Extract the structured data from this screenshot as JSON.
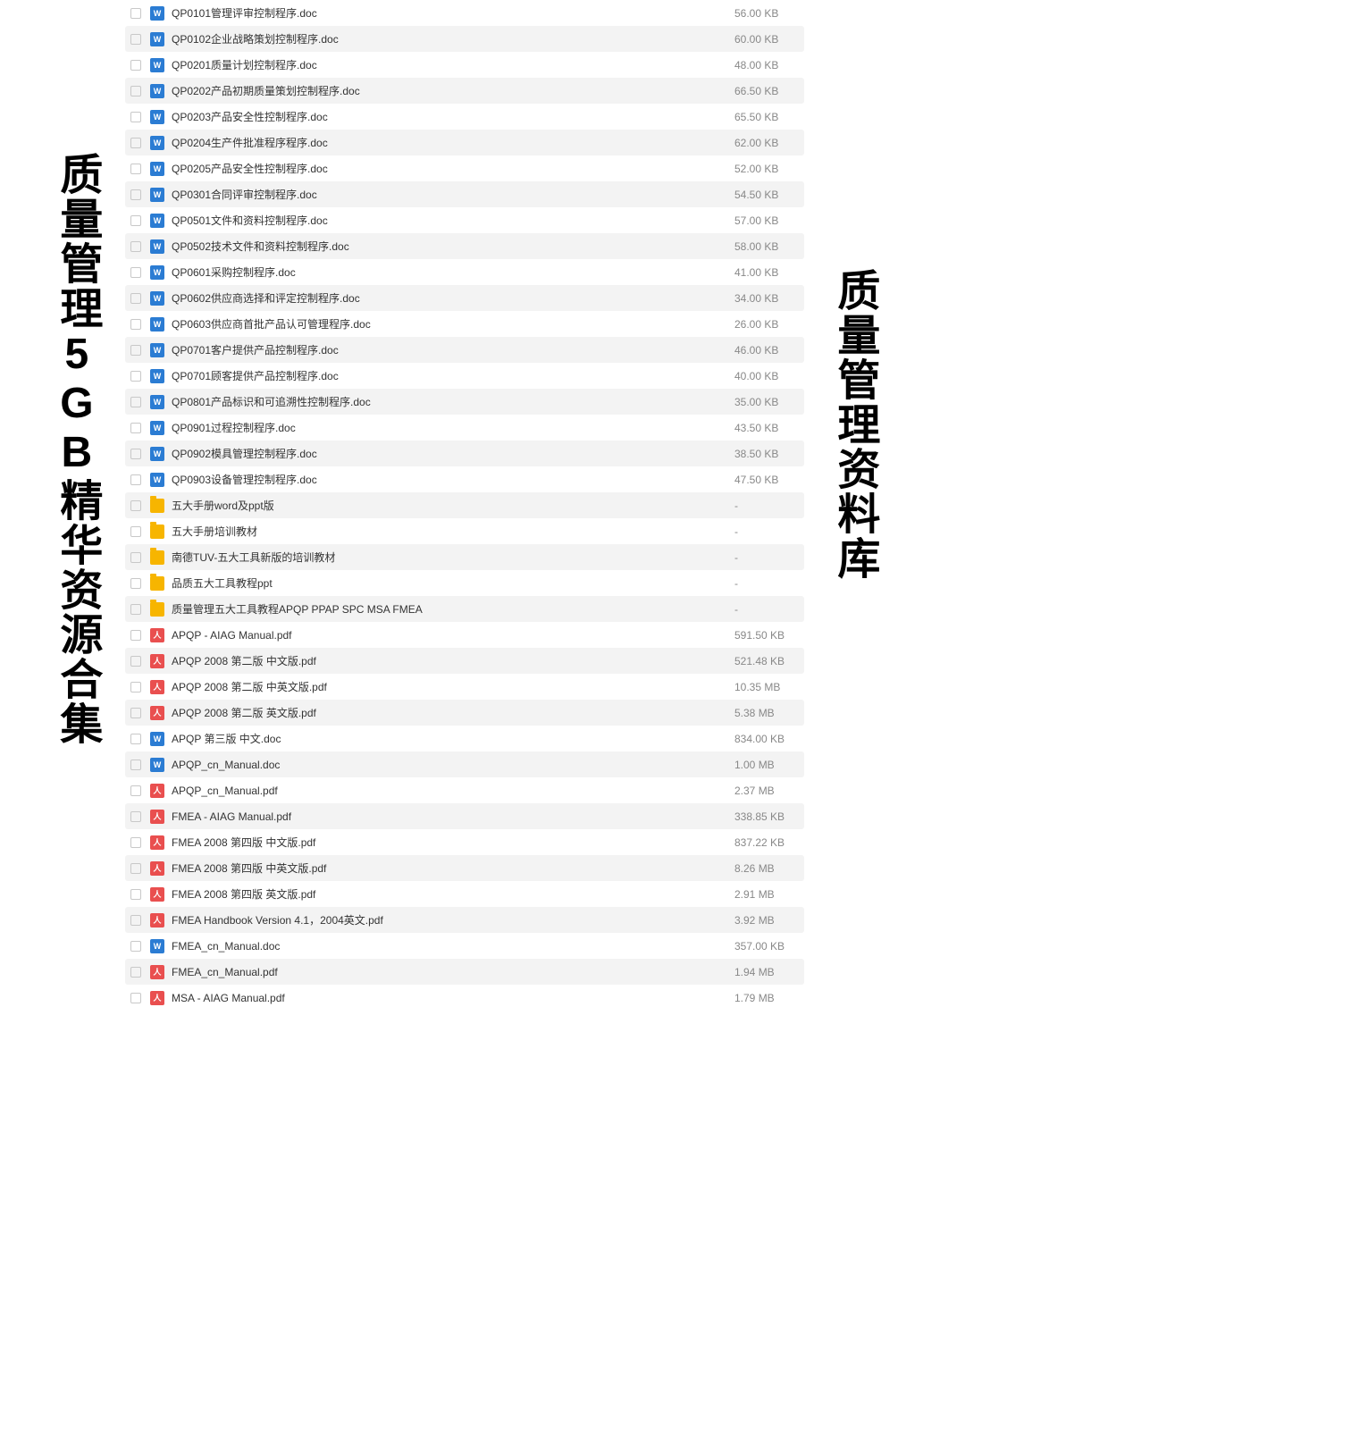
{
  "sideLabels": {
    "left": "质量管理5GB精华资源合集",
    "right": "质量管理资料库"
  },
  "iconGlyphs": {
    "doc": "W",
    "pdf": "人",
    "folder": ""
  },
  "colors": {
    "docIcon": "#2b7cd3",
    "pdfIcon": "#e94f4f",
    "folderIcon": "#f7b500",
    "rowAltBg": "#f3f3f3",
    "textPrimary": "#333333",
    "textSecondary": "#888888",
    "checkboxBorder": "#c8c8c8",
    "background": "#ffffff"
  },
  "files": [
    {
      "type": "doc",
      "name": "QP0101管理评审控制程序.doc",
      "size": "56.00 KB"
    },
    {
      "type": "doc",
      "name": "QP0102企业战略策划控制程序.doc",
      "size": "60.00 KB"
    },
    {
      "type": "doc",
      "name": "QP0201质量计划控制程序.doc",
      "size": "48.00 KB"
    },
    {
      "type": "doc",
      "name": "QP0202产品初期质量策划控制程序.doc",
      "size": "66.50 KB"
    },
    {
      "type": "doc",
      "name": "QP0203产品安全性控制程序.doc",
      "size": "65.50 KB"
    },
    {
      "type": "doc",
      "name": "QP0204生产件批准程序程序.doc",
      "size": "62.00 KB"
    },
    {
      "type": "doc",
      "name": "QP0205产品安全性控制程序.doc",
      "size": "52.00 KB"
    },
    {
      "type": "doc",
      "name": "QP0301合同评审控制程序.doc",
      "size": "54.50 KB"
    },
    {
      "type": "doc",
      "name": "QP0501文件和资料控制程序.doc",
      "size": "57.00 KB"
    },
    {
      "type": "doc",
      "name": "QP0502技术文件和资料控制程序.doc",
      "size": "58.00 KB"
    },
    {
      "type": "doc",
      "name": "QP0601采购控制程序.doc",
      "size": "41.00 KB"
    },
    {
      "type": "doc",
      "name": "QP0602供应商选择和评定控制程序.doc",
      "size": "34.00 KB"
    },
    {
      "type": "doc",
      "name": "QP0603供应商首批产品认可管理程序.doc",
      "size": "26.00 KB"
    },
    {
      "type": "doc",
      "name": "QP0701客户提供产品控制程序.doc",
      "size": "46.00 KB"
    },
    {
      "type": "doc",
      "name": "QP0701顾客提供产品控制程序.doc",
      "size": "40.00 KB"
    },
    {
      "type": "doc",
      "name": "QP0801产品标识和可追溯性控制程序.doc",
      "size": "35.00 KB"
    },
    {
      "type": "doc",
      "name": "QP0901过程控制程序.doc",
      "size": "43.50 KB"
    },
    {
      "type": "doc",
      "name": "QP0902模具管理控制程序.doc",
      "size": "38.50 KB"
    },
    {
      "type": "doc",
      "name": "QP0903设备管理控制程序.doc",
      "size": "47.50 KB"
    },
    {
      "type": "folder",
      "name": "五大手册word及ppt版",
      "size": "-"
    },
    {
      "type": "folder",
      "name": "五大手册培训教材",
      "size": "-"
    },
    {
      "type": "folder",
      "name": "南德TUV-五大工具新版的培训教材",
      "size": "-"
    },
    {
      "type": "folder",
      "name": "品质五大工具教程ppt",
      "size": "-"
    },
    {
      "type": "folder",
      "name": "质量管理五大工具教程APQP PPAP SPC MSA FMEA",
      "size": "-"
    },
    {
      "type": "pdf",
      "name": "APQP - AIAG Manual.pdf",
      "size": "591.50 KB"
    },
    {
      "type": "pdf",
      "name": "APQP 2008 第二版 中文版.pdf",
      "size": "521.48 KB"
    },
    {
      "type": "pdf",
      "name": "APQP 2008 第二版 中英文版.pdf",
      "size": "10.35 MB"
    },
    {
      "type": "pdf",
      "name": "APQP 2008 第二版 英文版.pdf",
      "size": "5.38 MB"
    },
    {
      "type": "doc",
      "name": "APQP 第三版 中文.doc",
      "size": "834.00 KB"
    },
    {
      "type": "doc",
      "name": "APQP_cn_Manual.doc",
      "size": "1.00 MB"
    },
    {
      "type": "pdf",
      "name": "APQP_cn_Manual.pdf",
      "size": "2.37 MB"
    },
    {
      "type": "pdf",
      "name": "FMEA - AIAG Manual.pdf",
      "size": "338.85 KB"
    },
    {
      "type": "pdf",
      "name": "FMEA 2008 第四版 中文版.pdf",
      "size": "837.22 KB"
    },
    {
      "type": "pdf",
      "name": "FMEA 2008 第四版 中英文版.pdf",
      "size": "8.26 MB"
    },
    {
      "type": "pdf",
      "name": "FMEA 2008 第四版 英文版.pdf",
      "size": "2.91 MB"
    },
    {
      "type": "pdf",
      "name": "FMEA Handbook Version 4.1，2004英文.pdf",
      "size": "3.92 MB"
    },
    {
      "type": "doc",
      "name": "FMEA_cn_Manual.doc",
      "size": "357.00 KB"
    },
    {
      "type": "pdf",
      "name": "FMEA_cn_Manual.pdf",
      "size": "1.94 MB"
    },
    {
      "type": "pdf",
      "name": "MSA - AIAG Manual.pdf",
      "size": "1.79 MB"
    }
  ]
}
